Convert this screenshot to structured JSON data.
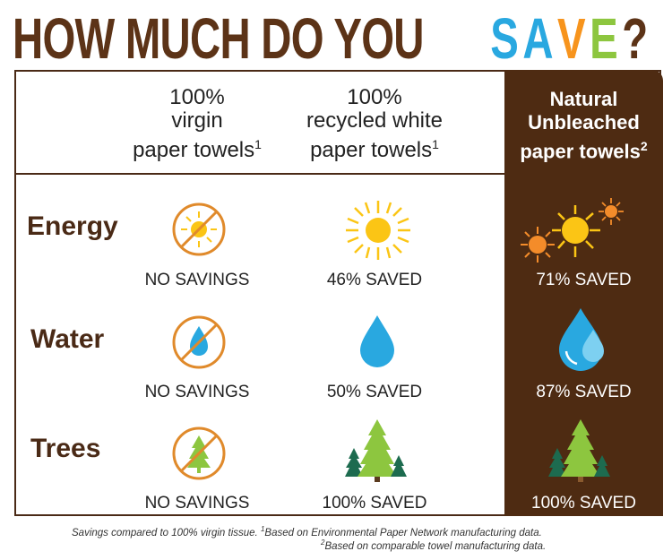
{
  "title": {
    "part1": "HOW MUCH DO YOU ",
    "letters": [
      {
        "char": "S",
        "color": "#29a8e0"
      },
      {
        "char": "A",
        "color": "#29a8e0"
      },
      {
        "char": "V",
        "color": "#f7941d"
      },
      {
        "char": "E",
        "color": "#8dc63f"
      }
    ],
    "end": "?"
  },
  "columns": [
    {
      "lines": [
        "100%",
        "virgin",
        "paper towels"
      ],
      "sup": "1"
    },
    {
      "lines": [
        "100%",
        "recycled white",
        "paper towels"
      ],
      "sup": "1"
    },
    {
      "lines": [
        "Natural",
        "Unbleached",
        "paper towels"
      ],
      "sup": "2"
    }
  ],
  "rows": [
    {
      "label": "Energy",
      "values": [
        "NO SAVINGS",
        "46% SAVED",
        "71% SAVED"
      ],
      "icons": [
        "no-sun-icon",
        "sun-icon",
        "three-suns-icon"
      ]
    },
    {
      "label": "Water",
      "values": [
        "NO SAVINGS",
        "50% SAVED",
        "87% SAVED"
      ],
      "icons": [
        "no-drop-icon",
        "drop-icon",
        "double-drop-icon"
      ]
    },
    {
      "label": "Trees",
      "values": [
        "NO SAVINGS",
        "100% SAVED",
        "100% SAVED"
      ],
      "icons": [
        "no-tree-icon",
        "trees-icon",
        "trees-icon"
      ]
    }
  ],
  "footnote": {
    "line1_a": "Savings compared to 100% virgin tissue. ",
    "line1_sup": "1",
    "line1_b": "Based on Environmental Paper Network manufacturing data.",
    "line2_sup": "2",
    "line2_b": "Based on comparable towel manufacturing data."
  },
  "colors": {
    "brown": "#4e2b12",
    "orange": "#e08a2b",
    "blue": "#29a8e0",
    "sun": "#fbc515",
    "green": "#8dc63f",
    "darkgreen": "#1d6b4f"
  }
}
